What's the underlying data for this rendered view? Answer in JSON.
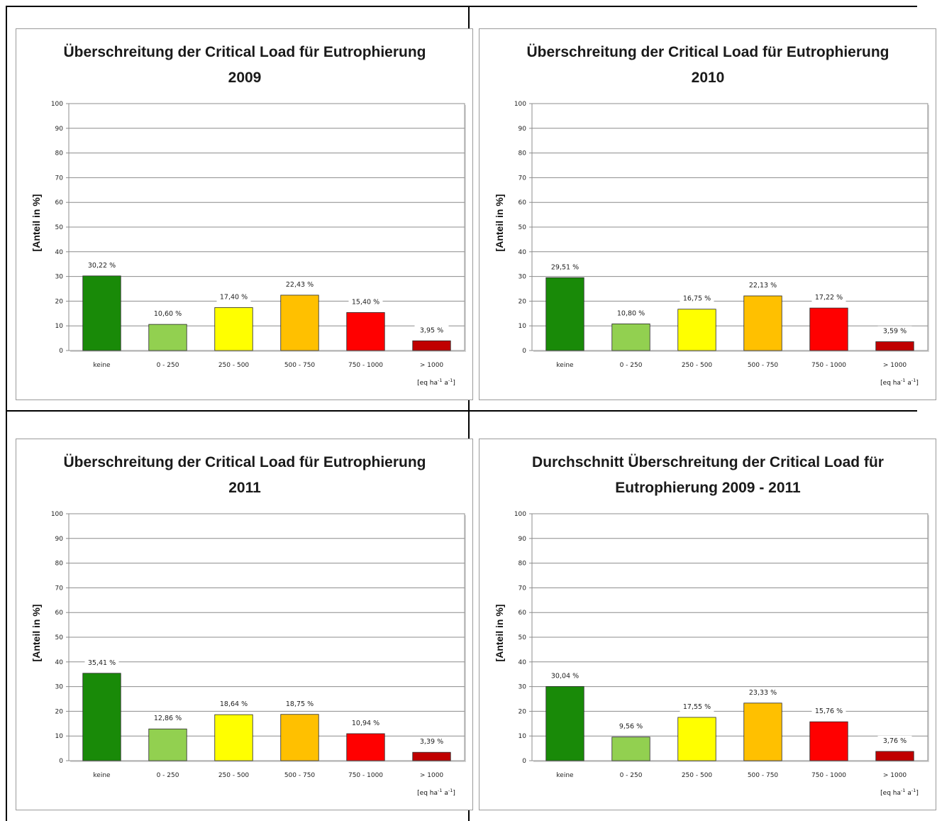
{
  "chart_data": [
    {
      "type": "bar",
      "title": [
        "Überschreitung der Critical Load für Eutrophierung",
        "2009"
      ],
      "ylabel": "[Anteil in %]",
      "unit_label": [
        "[eq ha",
        "-1",
        " a",
        "-1",
        "]"
      ],
      "categories": [
        "keine",
        "0 - 250",
        "250 - 500",
        "500 - 750",
        "750 - 1000",
        "> 1000"
      ],
      "values": [
        30.22,
        10.6,
        17.4,
        22.43,
        15.4,
        3.95
      ],
      "data_labels": [
        "30,22 %",
        "10,60 %",
        "17,40 %",
        "22,43 %",
        "15,40 %",
        "3,95 %"
      ],
      "ylim": [
        0,
        100
      ],
      "yticks": [
        "0",
        "10",
        "20",
        "30",
        "40",
        "50",
        "60",
        "70",
        "80",
        "90",
        "100"
      ],
      "colors": [
        "#198a08",
        "#92d050",
        "#ffff00",
        "#ffc000",
        "#ff0000",
        "#c00000"
      ],
      "grid": true
    },
    {
      "type": "bar",
      "title": [
        "Überschreitung der Critical Load für Eutrophierung",
        "2010"
      ],
      "ylabel": "[Anteil in %]",
      "unit_label": [
        "[eq ha",
        "-1",
        " a",
        "-1",
        "]"
      ],
      "categories": [
        "keine",
        "0 - 250",
        "250 - 500",
        "500 - 750",
        "750 - 1000",
        "> 1000"
      ],
      "values": [
        29.51,
        10.8,
        16.75,
        22.13,
        17.22,
        3.59
      ],
      "data_labels": [
        "29,51 %",
        "10,80 %",
        "16,75 %",
        "22,13 %",
        "17,22 %",
        "3,59 %"
      ],
      "ylim": [
        0,
        100
      ],
      "yticks": [
        "0",
        "10",
        "20",
        "30",
        "40",
        "50",
        "60",
        "70",
        "80",
        "90",
        "100"
      ],
      "colors": [
        "#198a08",
        "#92d050",
        "#ffff00",
        "#ffc000",
        "#ff0000",
        "#c00000"
      ],
      "grid": true
    },
    {
      "type": "bar",
      "title": [
        "Überschreitung der Critical Load für Eutrophierung",
        "2011"
      ],
      "ylabel": "[Anteil in %]",
      "unit_label": [
        "[eq ha",
        "-1",
        " a",
        "-1",
        "]"
      ],
      "categories": [
        "keine",
        "0 - 250",
        "250 - 500",
        "500 - 750",
        "750 - 1000",
        "> 1000"
      ],
      "values": [
        35.41,
        12.86,
        18.64,
        18.75,
        10.94,
        3.39
      ],
      "data_labels": [
        "35,41 %",
        "12,86 %",
        "18,64 %",
        "18,75 %",
        "10,94 %",
        "3,39 %"
      ],
      "ylim": [
        0,
        100
      ],
      "yticks": [
        "0",
        "10",
        "20",
        "30",
        "40",
        "50",
        "60",
        "70",
        "80",
        "90",
        "100"
      ],
      "colors": [
        "#198a08",
        "#92d050",
        "#ffff00",
        "#ffc000",
        "#ff0000",
        "#c00000"
      ],
      "grid": true
    },
    {
      "type": "bar",
      "title": [
        "Durchschnitt Überschreitung der Critical Load für",
        "Eutrophierung 2009 - 2011"
      ],
      "ylabel": "[Anteil in %]",
      "unit_label": [
        "[eq ha",
        "-1",
        " a",
        "-1",
        "]"
      ],
      "categories": [
        "keine",
        "0 - 250",
        "250 - 500",
        "500 - 750",
        "750 - 1000",
        "> 1000"
      ],
      "values": [
        30.04,
        9.56,
        17.55,
        23.33,
        15.76,
        3.76
      ],
      "data_labels": [
        "30,04 %",
        "9,56 %",
        "17,55 %",
        "23,33 %",
        "15,76 %",
        "3,76 %"
      ],
      "ylim": [
        0,
        100
      ],
      "yticks": [
        "0",
        "10",
        "20",
        "30",
        "40",
        "50",
        "60",
        "70",
        "80",
        "90",
        "100"
      ],
      "colors": [
        "#198a08",
        "#92d050",
        "#ffff00",
        "#ffc000",
        "#ff0000",
        "#c00000"
      ],
      "grid": true
    }
  ]
}
